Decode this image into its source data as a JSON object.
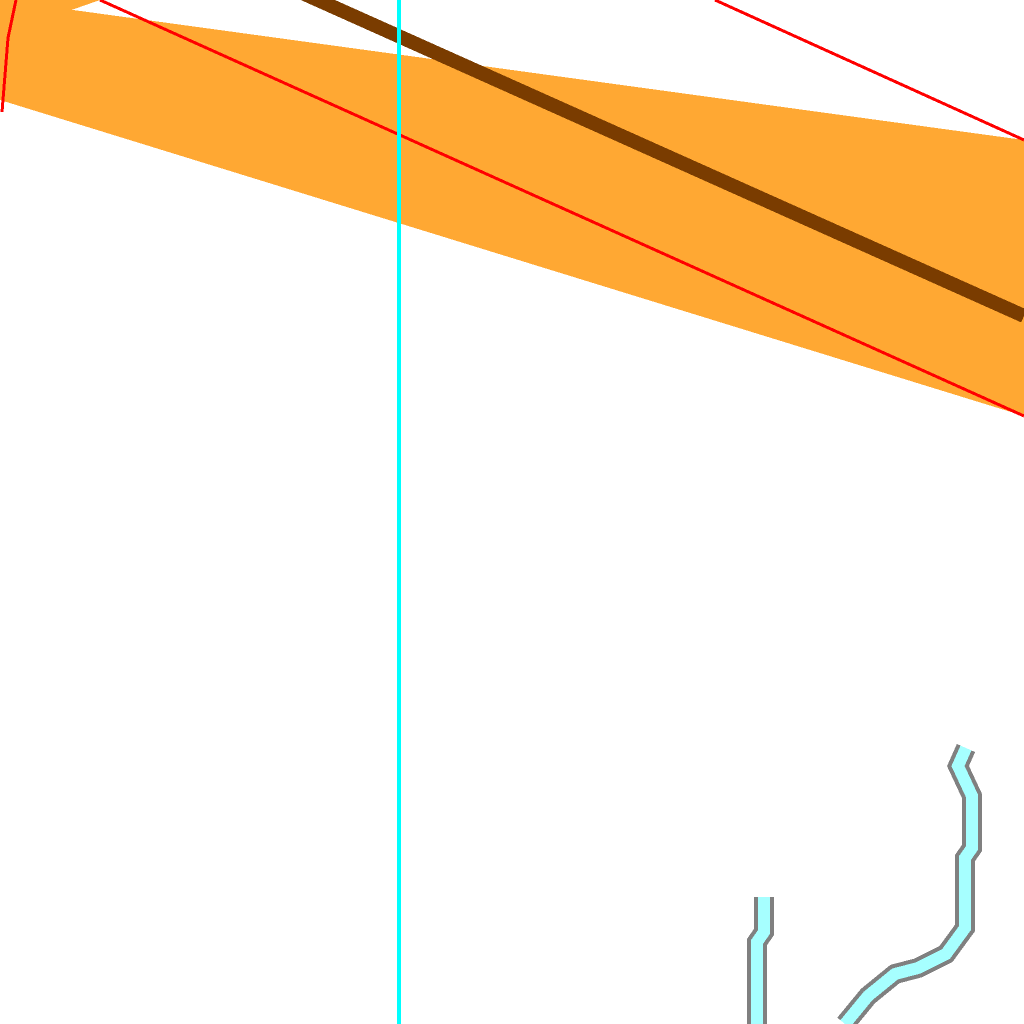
{
  "map": {
    "background_color": "#ffffff",
    "features": [
      {
        "id": "road_band",
        "kind": "road-casing",
        "fill_color": "#ffa833",
        "outline_color": "#ff0000"
      },
      {
        "id": "road_center",
        "kind": "road-centerline",
        "stroke_color": "#7a3c00"
      },
      {
        "id": "boundary_line",
        "kind": "vertical-boundary-line",
        "stroke_color": "#00ffff"
      },
      {
        "id": "stream",
        "kind": "water-channel",
        "fill_color": "#a6ffff",
        "outline_color": "#808080"
      }
    ]
  }
}
